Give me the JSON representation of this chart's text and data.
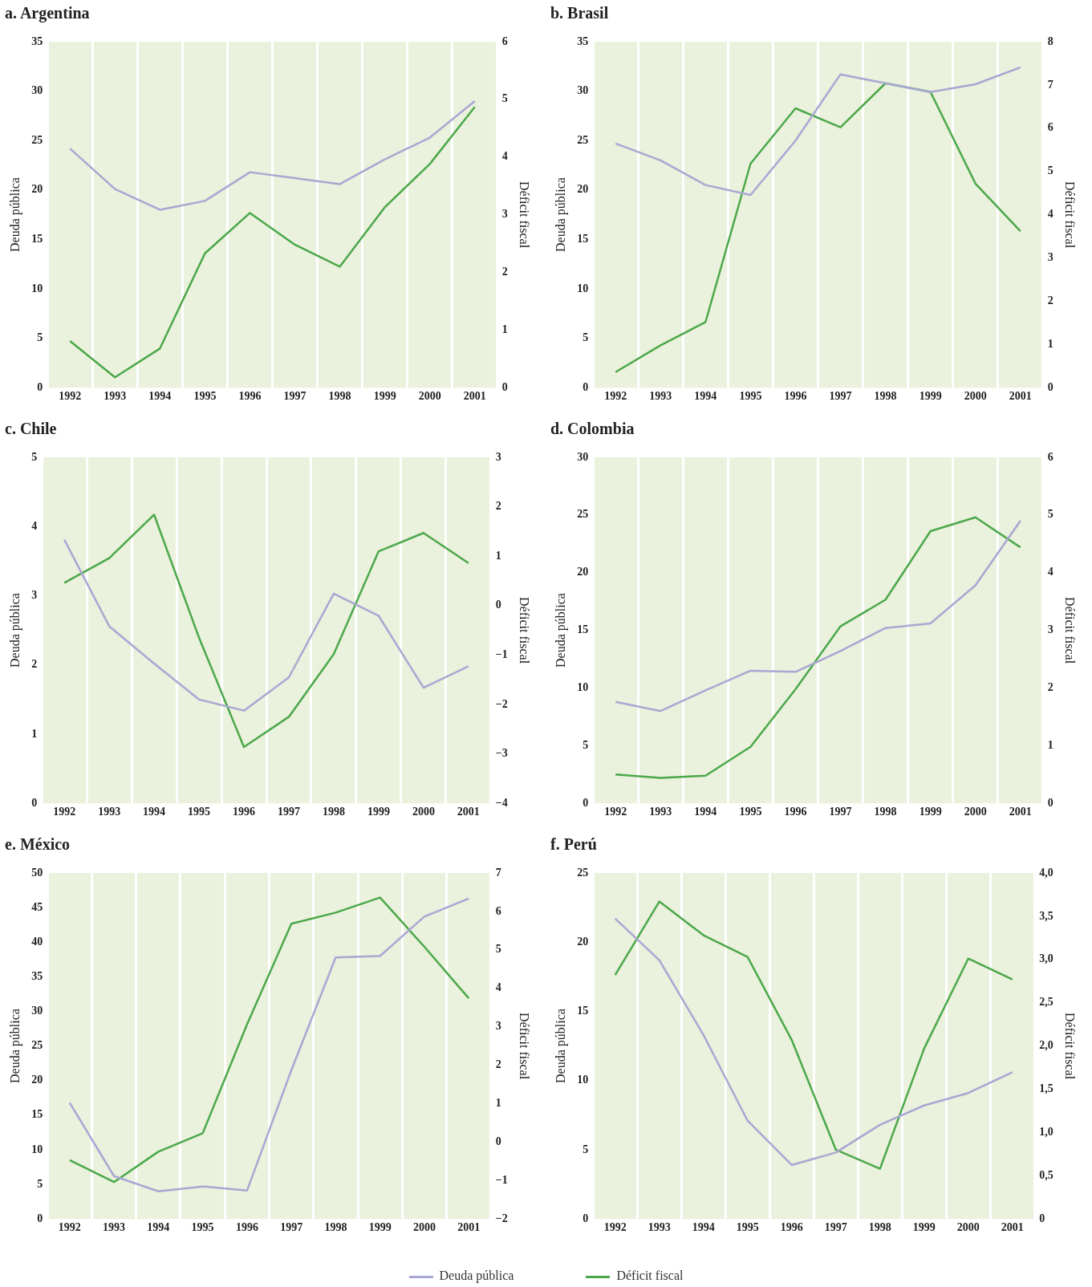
{
  "chart_data": [
    {
      "type": "line",
      "title": "a. Argentina",
      "ylabel": "Deuda pública",
      "y2label": "Déficit fiscal",
      "categories": [
        "1992",
        "1993",
        "1994",
        "1995",
        "1996",
        "1997",
        "1998",
        "1999",
        "2000",
        "2001"
      ],
      "grid": "x",
      "ylim": [
        0,
        35
      ],
      "yticks": [
        0,
        5,
        10,
        15,
        20,
        25,
        30,
        35
      ],
      "y2lim": [
        0,
        6
      ],
      "y2ticks": [
        0,
        1,
        2,
        3,
        4,
        5,
        6
      ],
      "series": [
        {
          "color": "#a9a7d3",
          "values": [
            24.2,
            20.1,
            18.0,
            18.9,
            21.8,
            21.2,
            20.6,
            23.1,
            25.3,
            29.0
          ]
        },
        {
          "color": "#4ba84a",
          "axis": "y2",
          "values": [
            0.81,
            0.18,
            0.68,
            2.33,
            3.03,
            2.48,
            2.1,
            3.13,
            3.88,
            4.87
          ]
        }
      ]
    },
    {
      "type": "line",
      "title": "b. Brasil",
      "ylabel": "Deuda pública",
      "y2label": "Déficit fiscal",
      "categories": [
        "1992",
        "1993",
        "1994",
        "1995",
        "1996",
        "1997",
        "1998",
        "1999",
        "2000",
        "2001"
      ],
      "grid": "x",
      "ylim": [
        0,
        35
      ],
      "yticks": [
        0,
        5,
        10,
        15,
        20,
        25,
        30,
        35
      ],
      "y2lim": [
        0,
        8
      ],
      "y2ticks": [
        0,
        1,
        2,
        3,
        4,
        5,
        6,
        7,
        8
      ],
      "series": [
        {
          "color": "#a9a7d3",
          "values": [
            24.7,
            23.0,
            20.5,
            19.5,
            25.0,
            31.7,
            30.8,
            29.9,
            30.7,
            32.4
          ]
        },
        {
          "color": "#4ba84a",
          "axis": "y2",
          "values": [
            0.36,
            0.98,
            1.52,
            5.18,
            6.46,
            6.02,
            7.04,
            6.84,
            4.72,
            3.62
          ]
        }
      ]
    },
    {
      "type": "line",
      "title": "c. Chile",
      "ylabel": "Deuda pública",
      "y2label": "Déficit fiscal",
      "categories": [
        "1992",
        "1993",
        "1994",
        "1995",
        "1996",
        "1997",
        "1998",
        "1999",
        "2000",
        "2001"
      ],
      "grid": "x",
      "ylim": [
        0,
        5
      ],
      "yticks": [
        0,
        1,
        2,
        3,
        4,
        5
      ],
      "y2lim": [
        -4,
        3
      ],
      "y2ticks": [
        {
          "value": -4,
          "label": "−4"
        },
        {
          "value": -3,
          "label": "−3"
        },
        {
          "value": -2,
          "label": "−2"
        },
        {
          "value": -1,
          "label": "−1"
        },
        0,
        1,
        2,
        3
      ],
      "series": [
        {
          "color": "#a9a7d3",
          "values": [
            3.81,
            2.56,
            2.02,
            1.5,
            1.34,
            1.82,
            3.03,
            2.71,
            1.67,
            1.98
          ]
        },
        {
          "color": "#4ba84a",
          "axis": "y2",
          "values": [
            0.46,
            0.96,
            1.84,
            -0.65,
            -2.86,
            -2.25,
            -0.98,
            1.1,
            1.47,
            0.86
          ]
        }
      ]
    },
    {
      "type": "line",
      "title": "d. Colombia",
      "ylabel": "Deuda pública",
      "y2label": "Déficit fiscal",
      "categories": [
        "1992",
        "1993",
        "1994",
        "1995",
        "1996",
        "1997",
        "1998",
        "1999",
        "2000",
        "2001"
      ],
      "grid": "x",
      "ylim": [
        0,
        30
      ],
      "yticks": [
        0,
        5,
        10,
        15,
        20,
        25,
        30
      ],
      "y2lim": [
        0,
        6
      ],
      "y2ticks": [
        0,
        1,
        2,
        3,
        4,
        5,
        6
      ],
      "series": [
        {
          "color": "#a9a7d3",
          "values": [
            8.8,
            8.0,
            9.8,
            11.5,
            11.4,
            13.2,
            15.2,
            15.6,
            18.9,
            24.5
          ]
        },
        {
          "color": "#4ba84a",
          "axis": "y2",
          "values": [
            0.5,
            0.44,
            0.48,
            0.98,
            1.98,
            3.07,
            3.53,
            4.72,
            4.96,
            4.44
          ]
        }
      ]
    },
    {
      "type": "line",
      "title": "e. México",
      "ylabel": "Deuda pública",
      "y2label": "Déficit fiscal",
      "categories": [
        "1992",
        "1993",
        "1994",
        "1995",
        "1996",
        "1997",
        "1998",
        "1999",
        "2000",
        "2001"
      ],
      "grid": "x",
      "ylim": [
        0,
        50
      ],
      "yticks": [
        0,
        5,
        10,
        15,
        20,
        25,
        30,
        35,
        40,
        45,
        50
      ],
      "y2lim": [
        -2,
        7
      ],
      "y2ticks": [
        {
          "value": -2,
          "label": "−2"
        },
        {
          "value": -1,
          "label": "−1"
        },
        0,
        1,
        2,
        3,
        4,
        5,
        6,
        7
      ],
      "series": [
        {
          "color": "#a9a7d3",
          "values": [
            16.8,
            6.2,
            4.0,
            4.7,
            4.1,
            21.5,
            37.8,
            38.0,
            43.7,
            46.3
          ]
        },
        {
          "color": "#4ba84a",
          "axis": "y2",
          "values": [
            -0.47,
            -1.04,
            -0.25,
            0.23,
            3.06,
            5.68,
            5.97,
            6.36,
            5.08,
            3.74
          ]
        }
      ]
    },
    {
      "type": "line",
      "title": "f. Perú",
      "ylabel": "Deuda pública",
      "y2label": "Déficit fiscal",
      "categories": [
        "1992",
        "1993",
        "1994",
        "1995",
        "1996",
        "1997",
        "1998",
        "1999",
        "2000",
        "2001"
      ],
      "grid": "x",
      "legend": "bottom",
      "ylim": [
        0,
        25
      ],
      "yticks": [
        0,
        5,
        10,
        15,
        20,
        25
      ],
      "y2lim": [
        0,
        4
      ],
      "y2ticks": [
        0,
        {
          "value": 0.5,
          "label": "0,5"
        },
        {
          "value": 1,
          "label": "1,0"
        },
        {
          "value": 1.5,
          "label": "1,5"
        },
        {
          "value": 2,
          "label": "2,0"
        },
        {
          "value": 2.5,
          "label": "2,5"
        },
        {
          "value": 3,
          "label": "3,0"
        },
        {
          "value": 3.5,
          "label": "3,5"
        },
        {
          "value": 4,
          "label": "4,0"
        }
      ],
      "series": [
        {
          "name": "Deuda pública",
          "color": "#a9a7d3",
          "values": [
            21.7,
            18.7,
            13.3,
            7.1,
            3.9,
            4.8,
            6.8,
            8.2,
            9.1,
            10.6
          ]
        },
        {
          "name": "Déficit fiscal",
          "color": "#4ba84a",
          "axis": "y2",
          "values": [
            2.82,
            3.67,
            3.28,
            3.03,
            2.07,
            0.8,
            0.58,
            1.97,
            3.01,
            2.77
          ]
        }
      ]
    }
  ]
}
